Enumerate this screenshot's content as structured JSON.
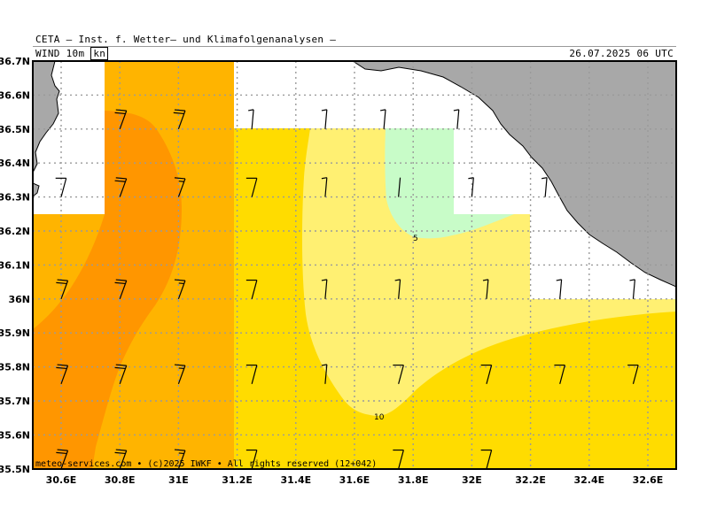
{
  "header": {
    "title": "CETA — Inst. f. Wetter— und Klimafolgenanalysen —",
    "parameter_prefix": "WIND 10m",
    "parameter_unit": "kn",
    "datetime": "26.07.2025 06 UTC"
  },
  "axes": {
    "lat_labels": [
      "36.7N",
      "36.6N",
      "36.5N",
      "36.4N",
      "36.3N",
      "36.2N",
      "36.1N",
      "36N",
      "35.9N",
      "35.8N",
      "35.7N",
      "35.6N",
      "35.5N"
    ],
    "lon_labels": [
      "30.6E",
      "30.8E",
      "31E",
      "31.2E",
      "31.4E",
      "31.6E",
      "31.8E",
      "32E",
      "32.2E",
      "32.4E",
      "32.6E"
    ]
  },
  "contour_labels": [
    "5",
    "10"
  ],
  "credit": "meteo-services.com • (c)2025 IWKF • All rights reserved (12+042)",
  "colors": {
    "land": "#a8a8a8",
    "speed_lt5": "#c8fcc8",
    "speed_5_10": "#fff072",
    "speed_10_15": "#ffdc00",
    "speed_15_20": "#ffb400",
    "speed_20_25": "#ff9600",
    "grid": "#9a9a9a"
  },
  "wind_barbs_kn": [
    {
      "lat": 36.5,
      "lon": 30.8,
      "speed": 20
    },
    {
      "lat": 36.5,
      "lon": 31.0,
      "speed": 20
    },
    {
      "lat": 36.5,
      "lon": 31.25,
      "speed": 5
    },
    {
      "lat": 36.5,
      "lon": 31.5,
      "speed": 5
    },
    {
      "lat": 36.5,
      "lon": 31.7,
      "speed": 5
    },
    {
      "lat": 36.5,
      "lon": 31.95,
      "speed": 5
    },
    {
      "lat": 36.3,
      "lon": 30.6,
      "speed": 10
    },
    {
      "lat": 36.3,
      "lon": 30.8,
      "speed": 20
    },
    {
      "lat": 36.3,
      "lon": 31.0,
      "speed": 15
    },
    {
      "lat": 36.3,
      "lon": 31.25,
      "speed": 10
    },
    {
      "lat": 36.3,
      "lon": 31.5,
      "speed": 5
    },
    {
      "lat": 36.3,
      "lon": 31.75,
      "speed": 0
    },
    {
      "lat": 36.3,
      "lon": 32.0,
      "speed": 5
    },
    {
      "lat": 36.3,
      "lon": 32.25,
      "speed": 5
    },
    {
      "lat": 36.0,
      "lon": 30.6,
      "speed": 20
    },
    {
      "lat": 36.0,
      "lon": 30.8,
      "speed": 20
    },
    {
      "lat": 36.0,
      "lon": 31.0,
      "speed": 15
    },
    {
      "lat": 36.0,
      "lon": 31.25,
      "speed": 10
    },
    {
      "lat": 36.0,
      "lon": 31.5,
      "speed": 5
    },
    {
      "lat": 36.0,
      "lon": 31.75,
      "speed": 5
    },
    {
      "lat": 36.0,
      "lon": 32.05,
      "speed": 5
    },
    {
      "lat": 36.0,
      "lon": 32.3,
      "speed": 5
    },
    {
      "lat": 36.0,
      "lon": 32.55,
      "speed": 5
    },
    {
      "lat": 35.75,
      "lon": 30.6,
      "speed": 20
    },
    {
      "lat": 35.75,
      "lon": 30.8,
      "speed": 20
    },
    {
      "lat": 35.75,
      "lon": 31.0,
      "speed": 15
    },
    {
      "lat": 35.75,
      "lon": 31.25,
      "speed": 10
    },
    {
      "lat": 35.75,
      "lon": 31.5,
      "speed": 5
    },
    {
      "lat": 35.75,
      "lon": 31.75,
      "speed": 10
    },
    {
      "lat": 35.75,
      "lon": 32.05,
      "speed": 10
    },
    {
      "lat": 35.75,
      "lon": 32.3,
      "speed": 10
    },
    {
      "lat": 35.75,
      "lon": 32.55,
      "speed": 10
    },
    {
      "lat": 35.5,
      "lon": 30.6,
      "speed": 20
    },
    {
      "lat": 35.5,
      "lon": 30.8,
      "speed": 20
    },
    {
      "lat": 35.5,
      "lon": 31.0,
      "speed": 15
    },
    {
      "lat": 35.5,
      "lon": 31.25,
      "speed": 10
    },
    {
      "lat": 35.5,
      "lon": 31.75,
      "speed": 10
    },
    {
      "lat": 35.5,
      "lon": 32.05,
      "speed": 10
    }
  ]
}
